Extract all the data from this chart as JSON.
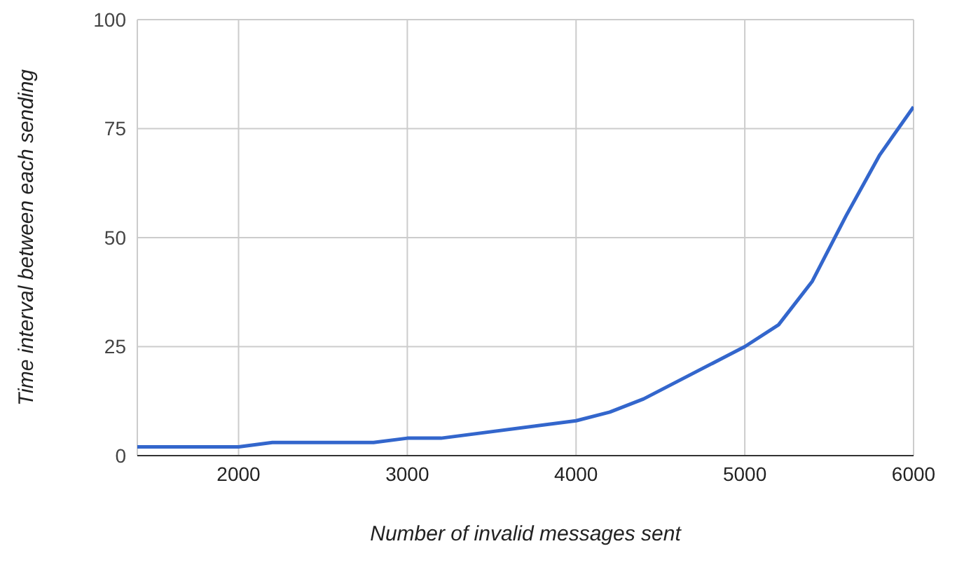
{
  "chart_data": {
    "type": "line",
    "xlabel": "Number of invalid messages sent",
    "ylabel": "Time interval between each sending",
    "x": [
      1400,
      2000,
      2200,
      2800,
      3000,
      3200,
      4000,
      4200,
      4400,
      5000,
      5200,
      5400,
      5600,
      5800,
      6000
    ],
    "series": [
      {
        "color": "#3366cc",
        "values": [
          2,
          2,
          3,
          3,
          4,
          4,
          8,
          10,
          13,
          25,
          30,
          40,
          55,
          69,
          80
        ]
      }
    ],
    "xlim": [
      1400,
      6000
    ],
    "xticks": [
      2000,
      3000,
      4000,
      5000,
      6000
    ],
    "ylim": [
      0,
      100
    ],
    "yticks": [
      0,
      25,
      50,
      75,
      100
    ],
    "grid": true,
    "marker": "none",
    "line_style": "solid"
  }
}
